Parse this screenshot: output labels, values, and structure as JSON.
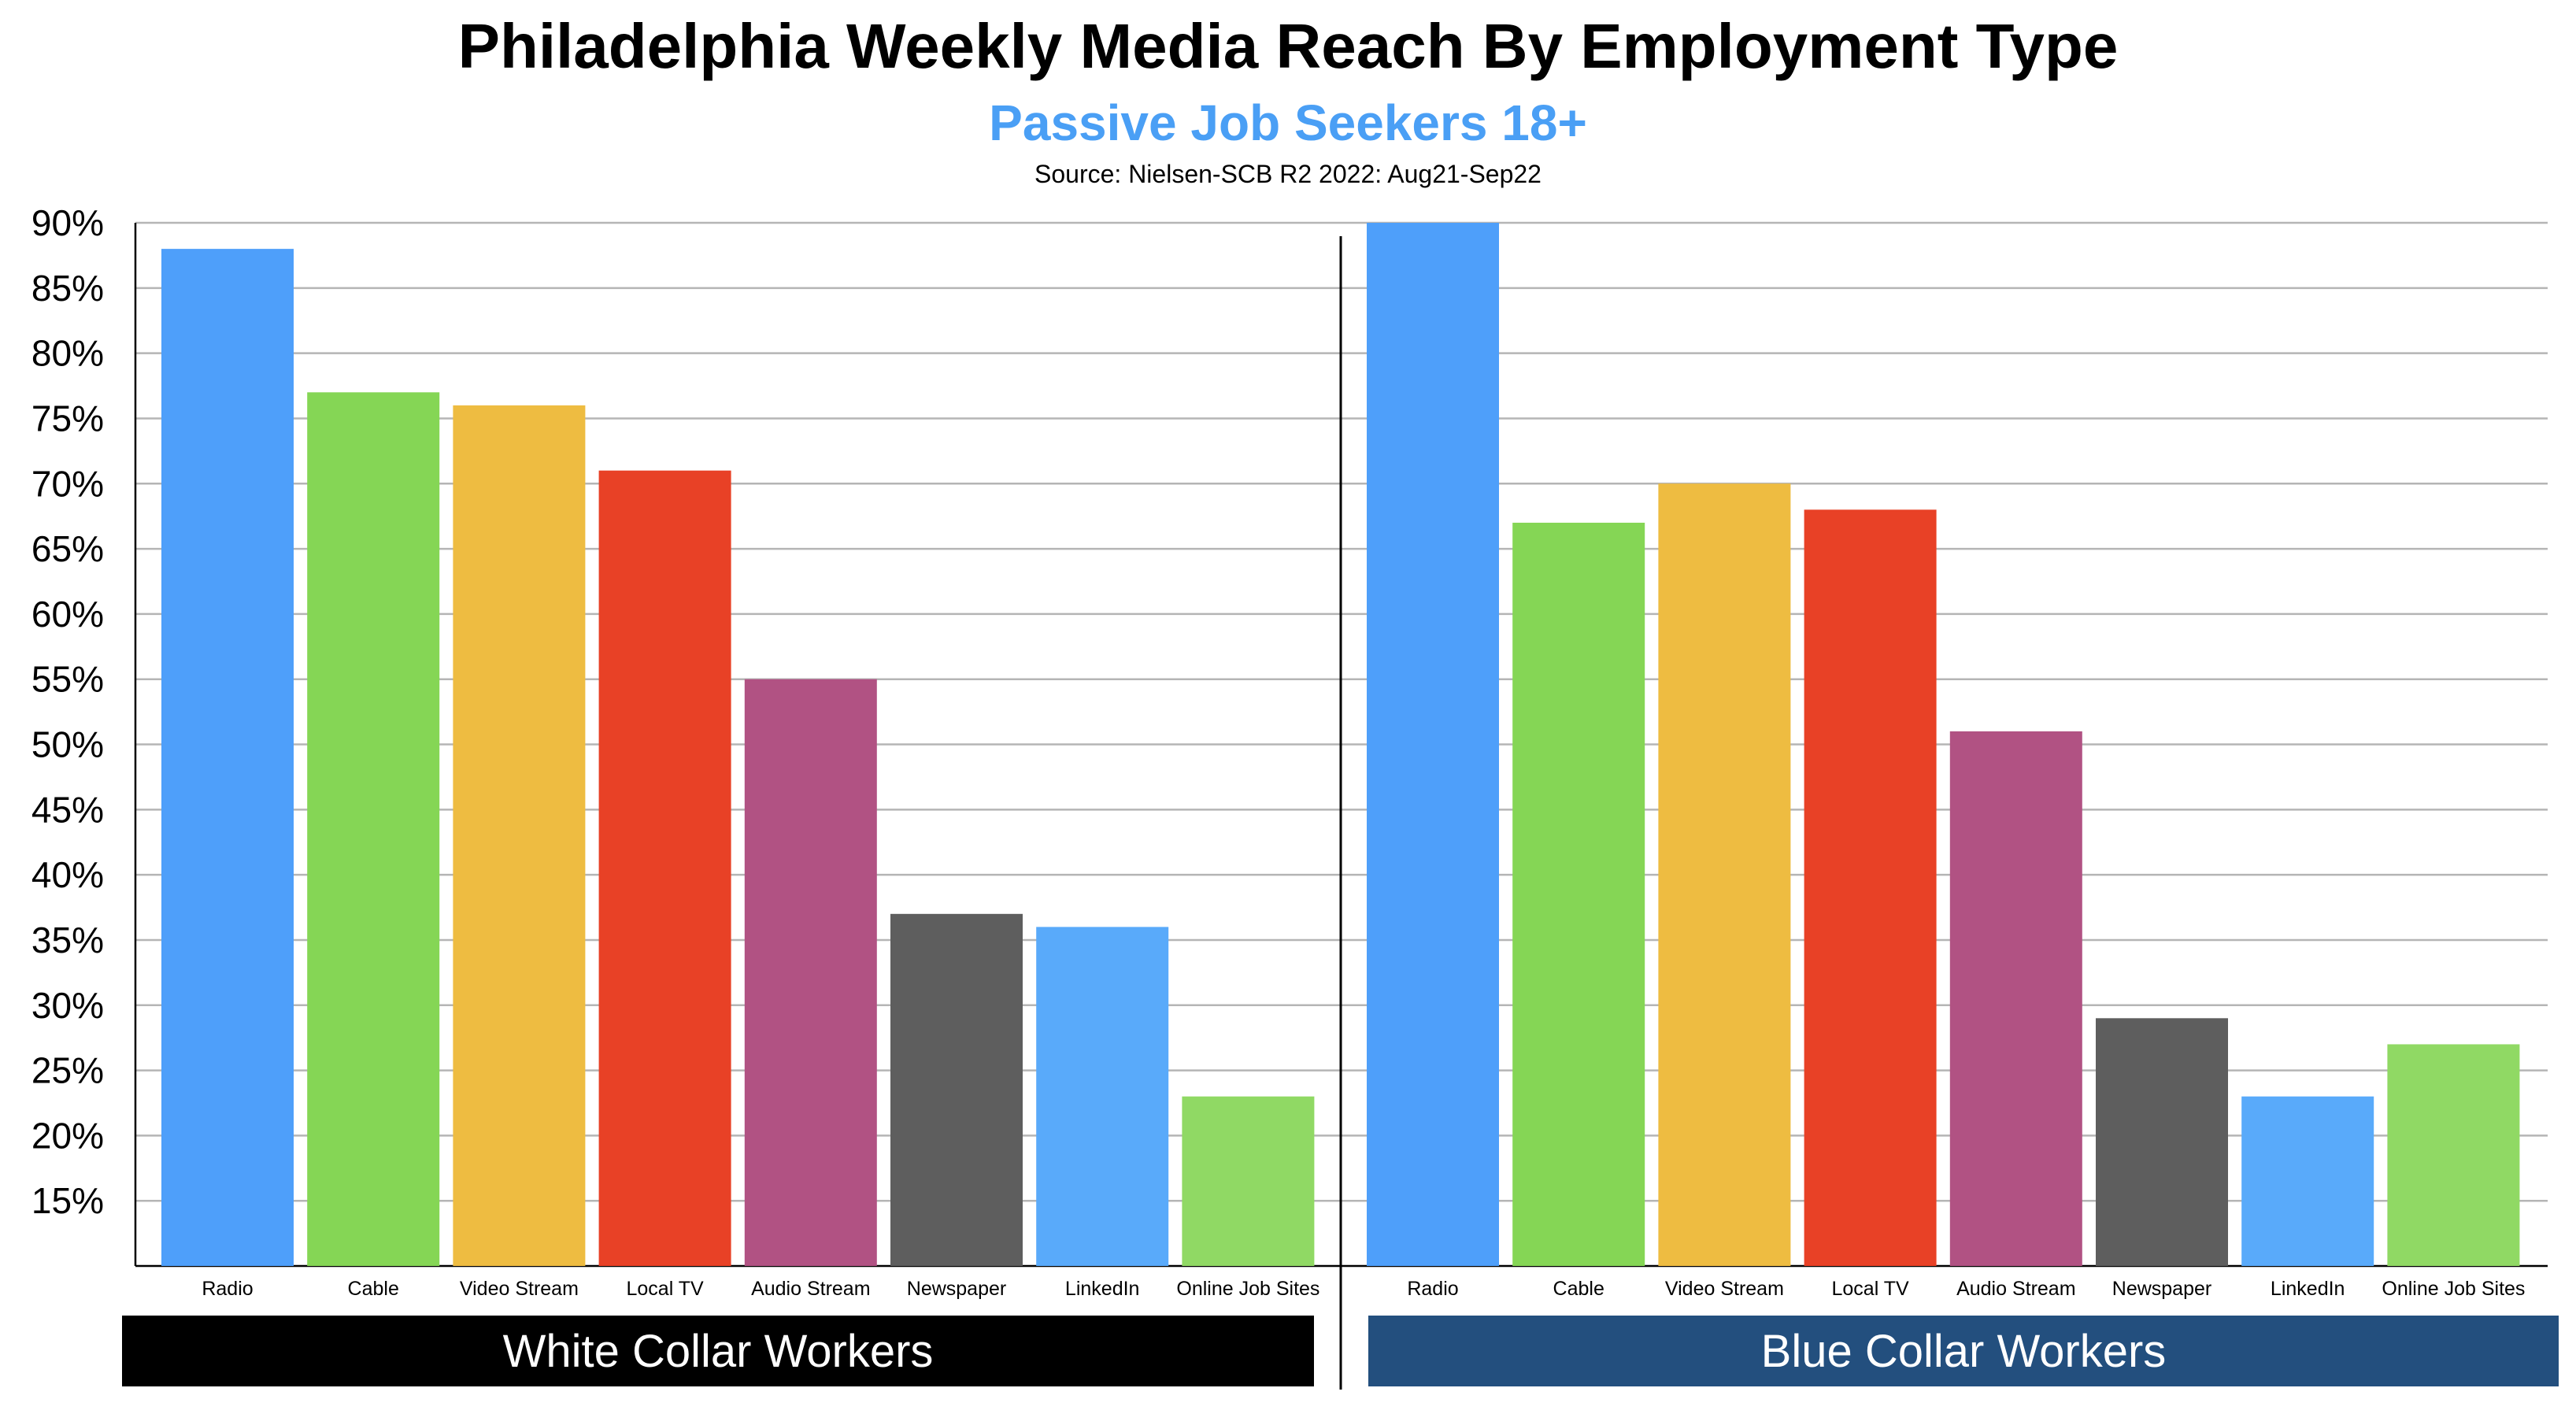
{
  "chart_data": {
    "type": "bar",
    "title": "Philadelphia Weekly Media Reach By Employment Type",
    "subtitle": "Passive Job Seekers 18+",
    "source": "Source: Nielsen-SCB R2 2022: Aug21-Sep22",
    "ylim": [
      10,
      90
    ],
    "yticks": [
      "15%",
      "20%",
      "25%",
      "30%",
      "35%",
      "40%",
      "45%",
      "50%",
      "55%",
      "60%",
      "65%",
      "70%",
      "75%",
      "80%",
      "85%",
      "90%"
    ],
    "grid": true,
    "categories": [
      "Radio",
      "Cable",
      "Video Stream",
      "Local TV",
      "Audio Stream",
      "Newspaper",
      "LinkedIn",
      "Online Job Sites"
    ],
    "colors": [
      "#4e9ffa",
      "#85d655",
      "#eebc41",
      "#e84126",
      "#b15283",
      "#5e5e5e",
      "#59aafa",
      "#90d964"
    ],
    "groups": [
      {
        "name": "White Collar Workers",
        "banner_color": "#000000",
        "values": [
          88,
          77,
          76,
          71,
          55,
          37,
          36,
          23
        ]
      },
      {
        "name": "Blue Collar Workers",
        "banner_color": "#234f7e",
        "values": [
          90,
          67,
          70,
          68,
          51,
          29,
          23,
          27
        ]
      }
    ]
  }
}
